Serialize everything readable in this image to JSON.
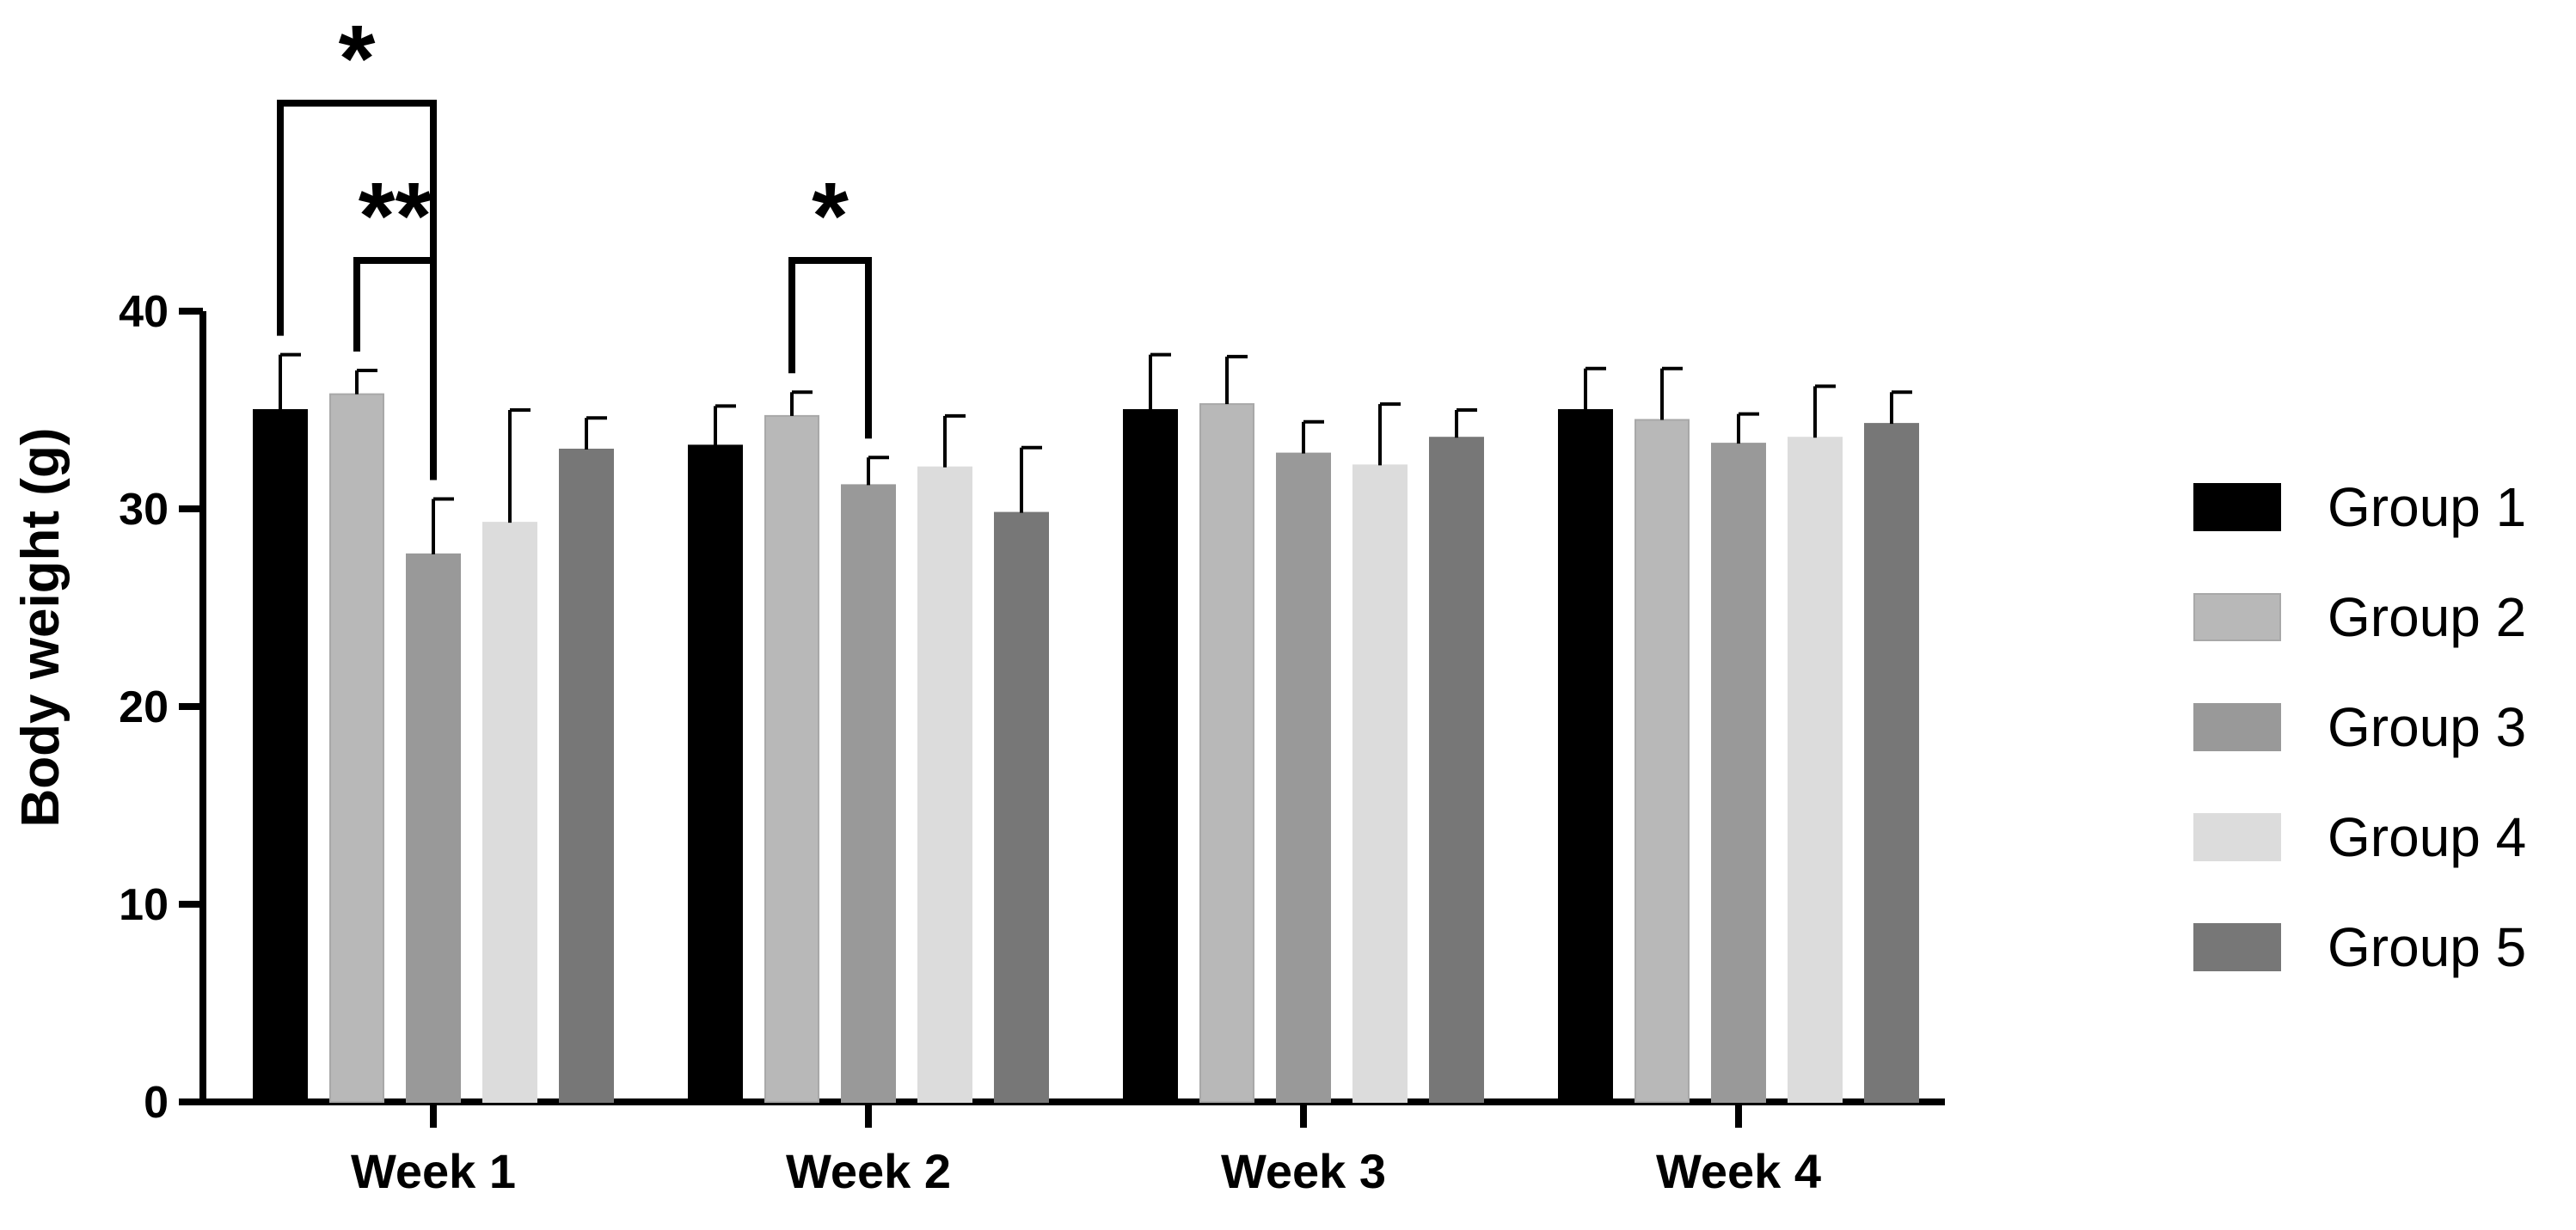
{
  "chart_data": {
    "type": "bar",
    "title": "",
    "xlabel": "",
    "ylabel": "Body weight (g)",
    "ylim": [
      0,
      40
    ],
    "yticks": [
      0,
      10,
      20,
      30,
      40
    ],
    "categories": [
      "Week 1",
      "Week 2",
      "Week 3",
      "Week 4"
    ],
    "series": [
      {
        "name": "Group 1",
        "color": "#000000",
        "values": [
          35.0,
          33.2,
          35.0,
          35.0
        ],
        "errors": [
          2.8,
          2.0,
          2.8,
          2.1
        ]
      },
      {
        "name": "Group 2",
        "color": "#b8b8b8",
        "values": [
          35.8,
          34.7,
          35.3,
          34.5
        ],
        "errors": [
          1.2,
          1.2,
          2.4,
          2.6
        ]
      },
      {
        "name": "Group 3",
        "color": "#999999",
        "values": [
          27.7,
          31.2,
          32.8,
          33.3
        ],
        "errors": [
          2.8,
          1.4,
          1.6,
          1.5
        ]
      },
      {
        "name": "Group 4",
        "color": "#dcdcdc",
        "values": [
          29.3,
          32.1,
          32.2,
          33.6
        ],
        "errors": [
          5.7,
          2.6,
          3.1,
          2.6
        ]
      },
      {
        "name": "Group 5",
        "color": "#777777",
        "values": [
          33.0,
          29.8,
          33.6,
          34.3
        ],
        "errors": [
          1.6,
          3.3,
          1.4,
          1.6
        ]
      }
    ],
    "legend": {
      "position": "right"
    },
    "significance": [
      {
        "category": "Week 1",
        "from_series": "Group 1",
        "to_series": "Group 3",
        "label": "*"
      },
      {
        "category": "Week 1",
        "from_series": "Group 2",
        "to_series": "Group 3",
        "label": "**"
      },
      {
        "category": "Week 2",
        "from_series": "Group 2",
        "to_series": "Group 3",
        "label": "*"
      }
    ]
  }
}
